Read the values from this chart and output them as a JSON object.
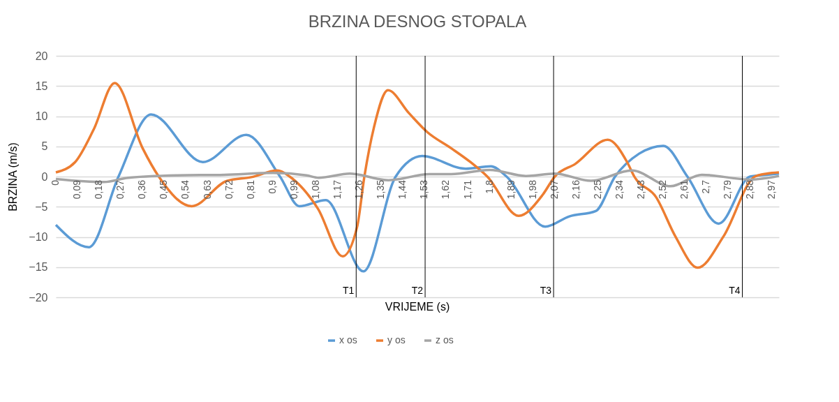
{
  "chart_data": {
    "type": "line",
    "title": "BRZINA DESNOG STOPALA",
    "xlabel": "VRIJEME (s)",
    "ylabel": "BRZINA (m/s)",
    "xlim": [
      0,
      3.0
    ],
    "ylim": [
      -20,
      20
    ],
    "yticks": [
      -20,
      -15,
      -10,
      -5,
      0,
      5,
      10,
      15,
      20
    ],
    "xticks": [
      {
        "value": 0,
        "label": "0"
      },
      {
        "value": 0.09,
        "label": "0,09"
      },
      {
        "value": 0.18,
        "label": "0,18"
      },
      {
        "value": 0.27,
        "label": "0,27"
      },
      {
        "value": 0.36,
        "label": "0,36"
      },
      {
        "value": 0.45,
        "label": "0,45"
      },
      {
        "value": 0.54,
        "label": "0,54"
      },
      {
        "value": 0.63,
        "label": "0,63"
      },
      {
        "value": 0.72,
        "label": "0,72"
      },
      {
        "value": 0.81,
        "label": "0,81"
      },
      {
        "value": 0.9,
        "label": "0,9"
      },
      {
        "value": 0.99,
        "label": "0,99"
      },
      {
        "value": 1.08,
        "label": "1,08"
      },
      {
        "value": 1.17,
        "label": "1,17"
      },
      {
        "value": 1.26,
        "label": "1,26"
      },
      {
        "value": 1.35,
        "label": "1,35"
      },
      {
        "value": 1.44,
        "label": "1,44"
      },
      {
        "value": 1.53,
        "label": "1,53"
      },
      {
        "value": 1.62,
        "label": "1,62"
      },
      {
        "value": 1.71,
        "label": "1,71"
      },
      {
        "value": 1.8,
        "label": "1,8"
      },
      {
        "value": 1.89,
        "label": "1,89"
      },
      {
        "value": 1.98,
        "label": "1,98"
      },
      {
        "value": 2.07,
        "label": "2,07"
      },
      {
        "value": 2.16,
        "label": "2,16"
      },
      {
        "value": 2.25,
        "label": "2,25"
      },
      {
        "value": 2.34,
        "label": "2,34"
      },
      {
        "value": 2.43,
        "label": "2,43"
      },
      {
        "value": 2.52,
        "label": "2,52"
      },
      {
        "value": 2.61,
        "label": "2,61"
      },
      {
        "value": 2.7,
        "label": "2,7"
      },
      {
        "value": 2.79,
        "label": "2,79"
      },
      {
        "value": 2.88,
        "label": "2,88"
      },
      {
        "value": 2.97,
        "label": "2,97"
      }
    ],
    "grid": "y",
    "legend": "bottom",
    "line_style": "solid",
    "marker": "none",
    "series": [
      {
        "name": "x os",
        "color": "#5b9bd5",
        "x": [
          0,
          0.137,
          0.26,
          0.395,
          0.61,
          0.79,
          0.93,
          1.01,
          1.12,
          1.276,
          1.41,
          1.52,
          1.7,
          1.805,
          1.87,
          2.03,
          2.13,
          2.24,
          2.32,
          2.42,
          2.52,
          2.62,
          2.75,
          2.88,
          2.95,
          3.0
        ],
        "values": [
          -8,
          -11.7,
          0,
          10.3,
          2.4,
          6.9,
          0,
          -4.9,
          -3.9,
          -15.7,
          0,
          3.4,
          1.3,
          1.7,
          0,
          -8.3,
          -6.6,
          -5.7,
          0,
          3.8,
          5.1,
          0,
          -7.8,
          0,
          0.3,
          0.5
        ]
      },
      {
        "name": "y os",
        "color": "#ed7d31",
        "x": [
          0,
          0.08,
          0.157,
          0.244,
          0.36,
          0.427,
          0.564,
          0.71,
          0.81,
          0.92,
          0.97,
          1.087,
          1.19,
          1.25,
          1.28,
          1.32,
          1.378,
          1.465,
          1.54,
          1.64,
          1.72,
          1.79,
          1.92,
          2.02,
          2.07,
          2.155,
          2.29,
          2.37,
          2.4,
          2.49,
          2.57,
          2.663,
          2.77,
          2.9,
          2.95,
          3.0
        ],
        "values": [
          0.7,
          2.4,
          7.8,
          15.5,
          4.7,
          0,
          -4.9,
          -0.7,
          -0.1,
          1.0,
          0,
          -5.3,
          -13.2,
          -8.3,
          0,
          8.2,
          14.3,
          10.5,
          7.4,
          4.7,
          2.4,
          0,
          -6.5,
          -3.0,
          0,
          2.1,
          6.1,
          2.4,
          0,
          -3.4,
          -9.9,
          -15.1,
          -9.9,
          0,
          0.5,
          0.7
        ]
      },
      {
        "name": "z os",
        "color": "#a5a5a5",
        "x": [
          0,
          0.2,
          0.3,
          0.5,
          0.7,
          0.9,
          1.04,
          1.09,
          1.22,
          1.38,
          1.55,
          1.64,
          1.8,
          1.95,
          2.07,
          2.22,
          2.39,
          2.55,
          2.68,
          2.88,
          3.0
        ],
        "values": [
          -0.4,
          -0.9,
          -0.2,
          0.2,
          0.3,
          0.6,
          0.2,
          -0.2,
          0.5,
          -0.6,
          0.4,
          0.4,
          1.1,
          0.1,
          0.5,
          -0.7,
          1.0,
          -1.6,
          0.3,
          -0.5,
          0.1
        ]
      }
    ],
    "ref_lines": [
      {
        "axis": "x",
        "value": 1.246,
        "label": "T1",
        "color": "#000000"
      },
      {
        "axis": "x",
        "value": 1.532,
        "label": "T2",
        "color": "#000000"
      },
      {
        "axis": "x",
        "value": 2.065,
        "label": "T3",
        "color": "#000000"
      },
      {
        "axis": "x",
        "value": 2.848,
        "label": "T4",
        "color": "#000000"
      }
    ]
  }
}
